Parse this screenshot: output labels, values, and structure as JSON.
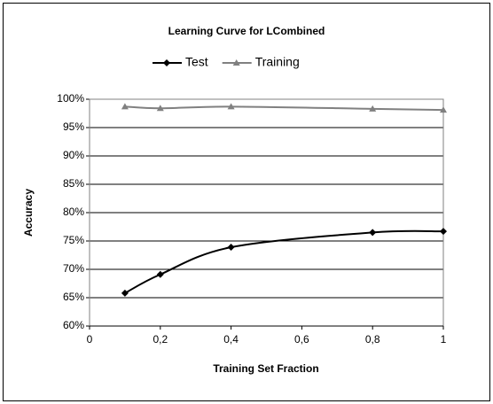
{
  "chart_data": {
    "type": "line",
    "title": "Learning Curve for LCombined",
    "xlabel": "Training Set Fraction",
    "ylabel": "Accuracy",
    "x": [
      0.1,
      0.2,
      0.4,
      0.8,
      1
    ],
    "series": [
      {
        "name": "Test",
        "color": "#000000",
        "marker": "diamond",
        "values": [
          65.8,
          69.1,
          73.9,
          76.5,
          76.7
        ]
      },
      {
        "name": "Training",
        "color": "#808080",
        "marker": "triangle",
        "values": [
          98.7,
          98.4,
          98.7,
          98.3,
          98.1
        ]
      }
    ],
    "xlim": [
      0,
      1
    ],
    "xticks": [
      0,
      {
        "value": 0.2,
        "label": "0,2"
      },
      {
        "value": 0.4,
        "label": "0,4"
      },
      {
        "value": 0.6,
        "label": "0,6"
      },
      {
        "value": 0.8,
        "label": "0,8"
      },
      1
    ],
    "ylim": [
      60,
      100
    ],
    "yticks": [
      {
        "value": 60,
        "label": "60%"
      },
      {
        "value": 65,
        "label": "65%"
      },
      {
        "value": 70,
        "label": "70%"
      },
      {
        "value": 75,
        "label": "75%"
      },
      {
        "value": 80,
        "label": "80%"
      },
      {
        "value": 85,
        "label": "85%"
      },
      {
        "value": 90,
        "label": "90%"
      },
      {
        "value": 95,
        "label": "95%"
      },
      {
        "value": 100,
        "label": "100%"
      }
    ],
    "grid": true,
    "legend": "top"
  }
}
